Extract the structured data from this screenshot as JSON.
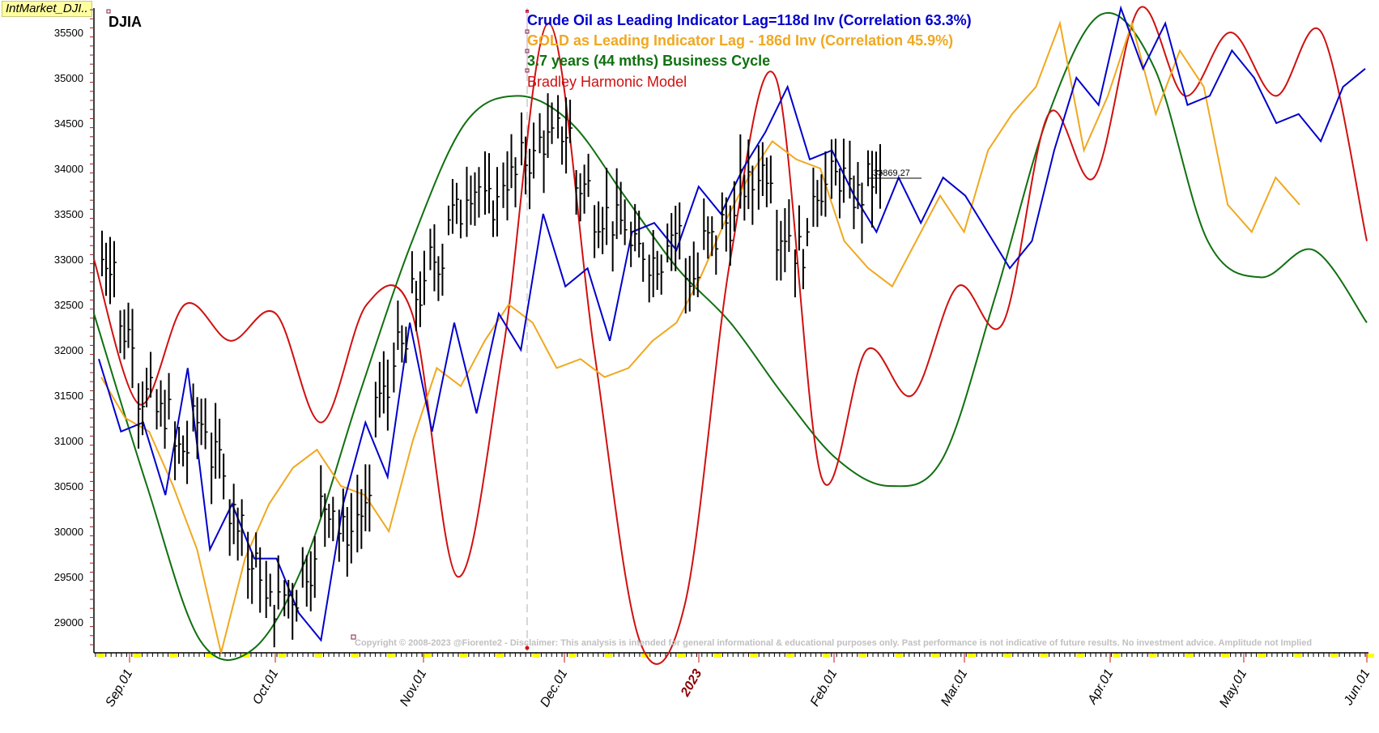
{
  "window_tag": "IntMarket_DJI..",
  "chart_title": "DJIA",
  "last_price_label": "33869.27",
  "copyright": "Copyright © 2008-2023 @Fiorente2 -  Disclaimer: This analysis is intended for general informational & educational purposes only. Past performance is not indicative of future results. No investment advice. Amplitude not Implied",
  "colors": {
    "crude": "#0000cc",
    "gold": "#f0a820",
    "cycle": "#107010",
    "bradley": "#d01010",
    "price": "#000000",
    "year_label": "#8b0000",
    "tag_bg": "#ffffa0"
  },
  "legend": [
    {
      "label": "Crude Oil as Leading Indicator Lag=118d Inv (Correlation 63.3%)",
      "color": "#0000cc"
    },
    {
      "label": "GOLD as Leading Indicator Lag - 186d Inv (Correlation 45.9%)",
      "color": "#f0a820"
    },
    {
      "label": "3.7 years (44 mths) Business Cycle",
      "color": "#107010"
    },
    {
      "label": "Bradley Harmonic Model",
      "color": "#d01010"
    }
  ],
  "chart_data": {
    "type": "line",
    "title": "DJIA",
    "xlabel": "",
    "ylabel": "",
    "ylim": [
      28700,
      35800
    ],
    "yticks": [
      29000,
      29500,
      30000,
      30500,
      31000,
      31500,
      32000,
      32500,
      33000,
      33500,
      34000,
      34500,
      35000,
      35500
    ],
    "xticks": [
      "Sep.01",
      "Oct.01",
      "Nov.01",
      "Dec.01",
      "2023",
      "Feb.01",
      "Mar.01",
      "Apr.01",
      "May.01",
      "Jun.01"
    ],
    "x_range": [
      "2022-08-18",
      "2023-06-01"
    ],
    "grid": false,
    "legend_position": "top-center",
    "series": [
      {
        "name": "DJIA (OHLC bars)",
        "type": "ohlc",
        "approx_closes": [
          33000,
          32200,
          31500,
          31300,
          30900,
          31200,
          30800,
          30200,
          29600,
          29200,
          29300,
          29600,
          30300,
          30000,
          30200,
          31500,
          32000,
          32600,
          33000,
          33500,
          33800,
          33600,
          33900,
          34100,
          34300,
          34400,
          33800,
          33500,
          33400,
          33100,
          33000,
          33300,
          32800,
          33200,
          33400,
          33800,
          34000,
          33300,
          33100,
          33800,
          33900,
          33700,
          33869.27
        ]
      },
      {
        "name": "Crude Oil as Leading Indicator Lag=118d Inv (Correlation 63.3%)",
        "approx_values": [
          31900,
          31100,
          31200,
          30400,
          31800,
          29800,
          30300,
          29700,
          29700,
          29100,
          28800,
          30300,
          31200,
          30600,
          32300,
          31100,
          32300,
          31300,
          32400,
          32000,
          33500,
          32700,
          32900,
          32100,
          33300,
          33400,
          33100,
          33800,
          33500,
          34000,
          34400,
          34900,
          34100,
          34200,
          33700,
          33300,
          33900,
          33400,
          33900,
          33700,
          33300,
          32900,
          33200,
          34200,
          35000,
          34700,
          35800,
          35100,
          35600,
          34700,
          34800,
          35300,
          35000,
          34500,
          34600,
          34300,
          34900,
          35100
        ]
      },
      {
        "name": "GOLD as Leading Indicator Lag - 186d Inv (Correlation 45.9%)",
        "approx_values": [
          31700,
          31250,
          31100,
          30500,
          29800,
          28600,
          29700,
          30300,
          30700,
          30900,
          30500,
          30400,
          30000,
          31000,
          31800,
          31600,
          32100,
          32500,
          32300,
          31800,
          31900,
          31700,
          31800,
          32100,
          32300,
          32800,
          33400,
          33900,
          34300,
          34100,
          34000,
          33200,
          32900,
          32700,
          33200,
          33700,
          33300,
          34200,
          34600,
          34900,
          35600,
          34200,
          34800,
          35600,
          34600,
          35300,
          34900,
          33600,
          33300,
          33900,
          33600
        ]
      },
      {
        "name": "3.7 years (44 mths) Business Cycle",
        "approx_values": [
          32400,
          30500,
          28800,
          28700,
          29700,
          31500,
          33200,
          34500,
          34800,
          34500,
          33700,
          32900,
          32300,
          31500,
          30800,
          30500,
          30800,
          32600,
          34600,
          35700,
          35100,
          33200,
          32800,
          33100,
          32300
        ]
      },
      {
        "name": "Bradley Harmonic Model",
        "approx_values": [
          33000,
          31400,
          32500,
          32100,
          32400,
          31200,
          32500,
          32400,
          29500,
          32000,
          35600,
          32000,
          28800,
          29200,
          33000,
          35000,
          30600,
          32000,
          31500,
          32700,
          32300,
          34600,
          33900,
          35800,
          34800,
          35500,
          34800,
          35500,
          33200
        ]
      }
    ]
  }
}
